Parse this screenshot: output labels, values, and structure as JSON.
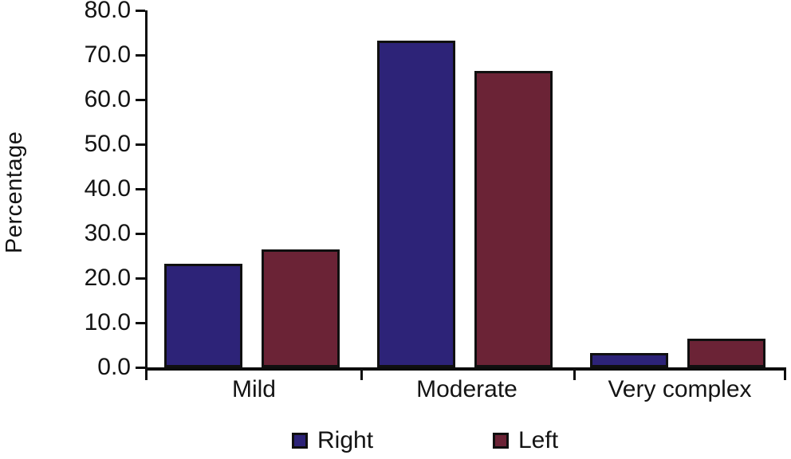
{
  "chart_data": {
    "type": "bar",
    "title": "",
    "xlabel": "",
    "ylabel": "Percentage",
    "categories": [
      "Mild",
      "Moderate",
      "Very complex"
    ],
    "series": [
      {
        "name": "Right",
        "color": "#2d2378",
        "values": [
          23.3,
          73.3,
          3.3
        ]
      },
      {
        "name": "Left",
        "color": "#6b2336",
        "values": [
          26.4,
          66.4,
          6.4
        ]
      }
    ],
    "ylim": [
      0,
      80
    ],
    "ytick_step": 10,
    "ytick_labels": [
      "0.0",
      "10.0",
      "20.0",
      "30.0",
      "40.0",
      "50.0",
      "60.0",
      "70.0",
      "80.0"
    ],
    "grid": false,
    "legend_position": "bottom",
    "axis_color": "#0d0d0d",
    "bar_border_color": "#101010",
    "background_color": "#ffffff"
  }
}
